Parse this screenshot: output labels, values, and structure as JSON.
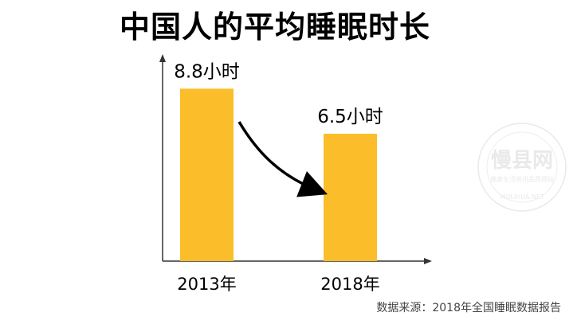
{
  "title": "中国人的平均睡眠时长",
  "source": "数据来源：2018年全国睡眠数据报告",
  "watermark": {
    "text": "慢县网",
    "subtext": "健康生活资讯品质网站",
    "latin": "MOLIHUA.NET"
  },
  "colors": {
    "bar": "#FBBE2A",
    "axis": "#333333",
    "text": "#000000"
  },
  "chart_data": {
    "type": "bar",
    "title": "中国人的平均睡眠时长",
    "categories": [
      "2013年",
      "2018年"
    ],
    "values": [
      8.8,
      6.5
    ],
    "value_labels": [
      "8.8小时",
      "6.5小时"
    ],
    "xlabel": "",
    "ylabel": "",
    "ylim": [
      0,
      10.4
    ],
    "grid": false,
    "legend": "none",
    "annotations": [
      "arrow from 2013 bar to 2018 bar"
    ]
  }
}
